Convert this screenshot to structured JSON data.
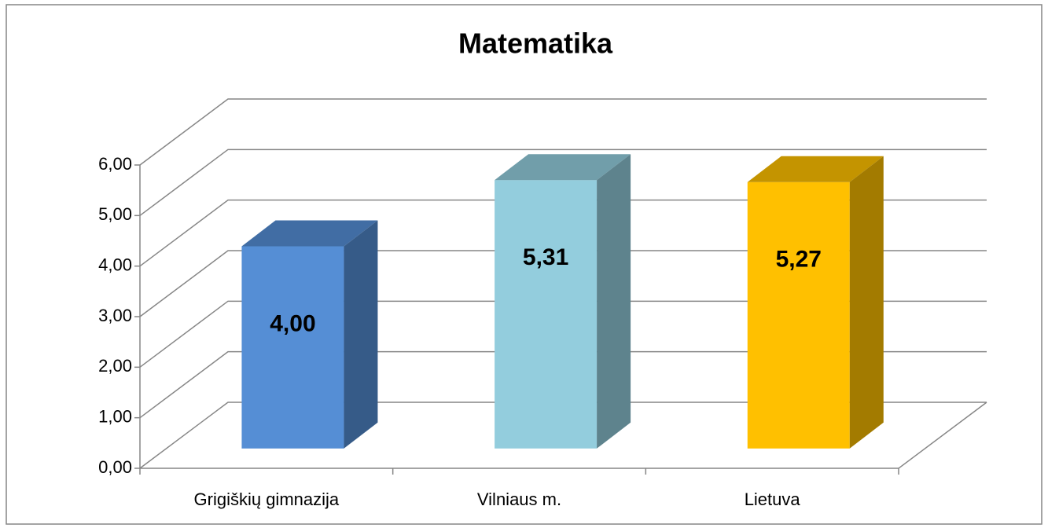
{
  "chart_data": {
    "type": "bar3d",
    "title": "Matematika",
    "categories": [
      "Grigiškių gimnazija",
      "Vilniaus m.",
      "Lietuva"
    ],
    "values": [
      4.0,
      5.31,
      5.27
    ],
    "value_labels": [
      "4,00",
      "5,31",
      "5,27"
    ],
    "colors": [
      "#558ed5",
      "#93cddd",
      "#ffc000"
    ],
    "ylim": [
      0,
      6
    ],
    "yticks": [
      {
        "value": 0,
        "label": "0,00"
      },
      {
        "value": 1,
        "label": "1,00"
      },
      {
        "value": 2,
        "label": "2,00"
      },
      {
        "value": 3,
        "label": "3,00"
      },
      {
        "value": 4,
        "label": "4,00"
      },
      {
        "value": 5,
        "label": "5,00"
      },
      {
        "value": 6,
        "label": "6,00"
      }
    ],
    "grid": true
  }
}
